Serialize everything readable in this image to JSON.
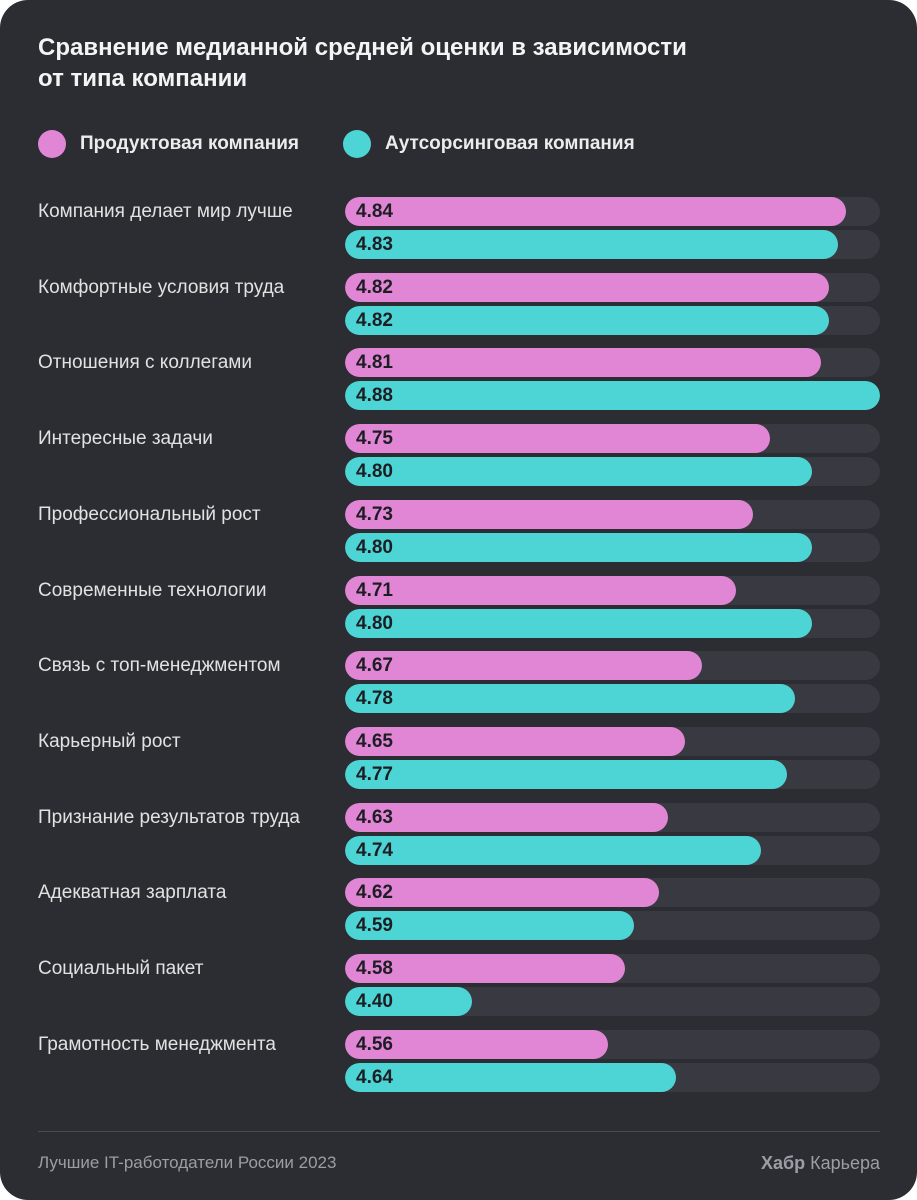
{
  "chart_data": {
    "type": "bar",
    "title": "Сравнение медианной средней оценки в зависимости\nот типа компании",
    "categories": [
      "Компания делает мир лучше",
      "Комфортные условия труда",
      "Отношения с коллегами",
      "Интересные задачи",
      "Профессиональный рост",
      "Современные технологии",
      "Связь с топ-менеджментом",
      "Карьерный рост",
      "Признание результатов труда",
      "Адекватная зарплата",
      "Социальный пакет",
      "Грамотность менеджмента"
    ],
    "series": [
      {
        "name": "Продуктовая компания",
        "color": "#e186d5",
        "values": [
          4.84,
          4.82,
          4.81,
          4.75,
          4.73,
          4.71,
          4.67,
          4.65,
          4.63,
          4.62,
          4.58,
          4.56
        ]
      },
      {
        "name": "Аутсорсинговая компания",
        "color": "#4dd5d5",
        "values": [
          4.83,
          4.82,
          4.88,
          4.8,
          4.8,
          4.8,
          4.78,
          4.77,
          4.74,
          4.59,
          4.4,
          4.64
        ]
      }
    ],
    "xlim": [
      4.25,
      4.88
    ],
    "grid": false
  },
  "colors": {
    "background": "#2c2d33",
    "track": "#393a41",
    "value_text": "#1d1e23"
  },
  "footer": {
    "source": "Лучшие IT-работодатели России 2023",
    "brand_bold": "Хабр",
    "brand_regular": "Карьера"
  }
}
